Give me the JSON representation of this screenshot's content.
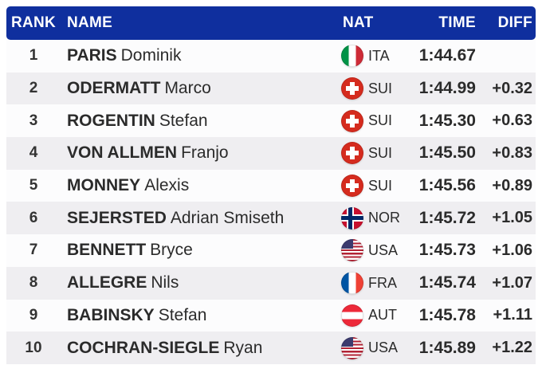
{
  "table": {
    "headers": {
      "rank": "RANK",
      "name": "NAME",
      "nat": "NAT",
      "time": "TIME",
      "diff": "DIFF"
    },
    "rows": [
      {
        "rank": "1",
        "last": "PARIS",
        "first": "Dominik",
        "nat": "ITA",
        "flag_icon": "italy-flag-icon",
        "time": "1:44.67",
        "diff": ""
      },
      {
        "rank": "2",
        "last": "ODERMATT",
        "first": "Marco",
        "nat": "SUI",
        "flag_icon": "switzerland-flag-icon",
        "time": "1:44.99",
        "diff": "+0.32"
      },
      {
        "rank": "3",
        "last": "ROGENTIN",
        "first": "Stefan",
        "nat": "SUI",
        "flag_icon": "switzerland-flag-icon",
        "time": "1:45.30",
        "diff": "+0.63"
      },
      {
        "rank": "4",
        "last": "VON ALLMEN",
        "first": "Franjo",
        "nat": "SUI",
        "flag_icon": "switzerland-flag-icon",
        "time": "1:45.50",
        "diff": "+0.83"
      },
      {
        "rank": "5",
        "last": "MONNEY",
        "first": "Alexis",
        "nat": "SUI",
        "flag_icon": "switzerland-flag-icon",
        "time": "1:45.56",
        "diff": "+0.89"
      },
      {
        "rank": "6",
        "last": "SEJERSTED",
        "first": "Adrian Smiseth",
        "nat": "NOR",
        "flag_icon": "norway-flag-icon",
        "time": "1:45.72",
        "diff": "+1.05"
      },
      {
        "rank": "7",
        "last": "BENNETT",
        "first": "Bryce",
        "nat": "USA",
        "flag_icon": "usa-flag-icon",
        "time": "1:45.73",
        "diff": "+1.06"
      },
      {
        "rank": "8",
        "last": "ALLEGRE",
        "first": "Nils",
        "nat": "FRA",
        "flag_icon": "france-flag-icon",
        "time": "1:45.74",
        "diff": "+1.07"
      },
      {
        "rank": "9",
        "last": "BABINSKY",
        "first": "Stefan",
        "nat": "AUT",
        "flag_icon": "austria-flag-icon",
        "time": "1:45.78",
        "diff": "+1.11"
      },
      {
        "rank": "10",
        "last": "COCHRAN-SIEGLE",
        "first": "Ryan",
        "nat": "USA",
        "flag_icon": "usa-flag-icon",
        "time": "1:45.89",
        "diff": "+1.22"
      }
    ]
  },
  "colors": {
    "header_bg": "#0f2f9e",
    "header_text": "#ffffff",
    "row_bg": "#fcfcfd",
    "row_alt_bg": "#efeef1",
    "text": "#2b2b2b"
  }
}
